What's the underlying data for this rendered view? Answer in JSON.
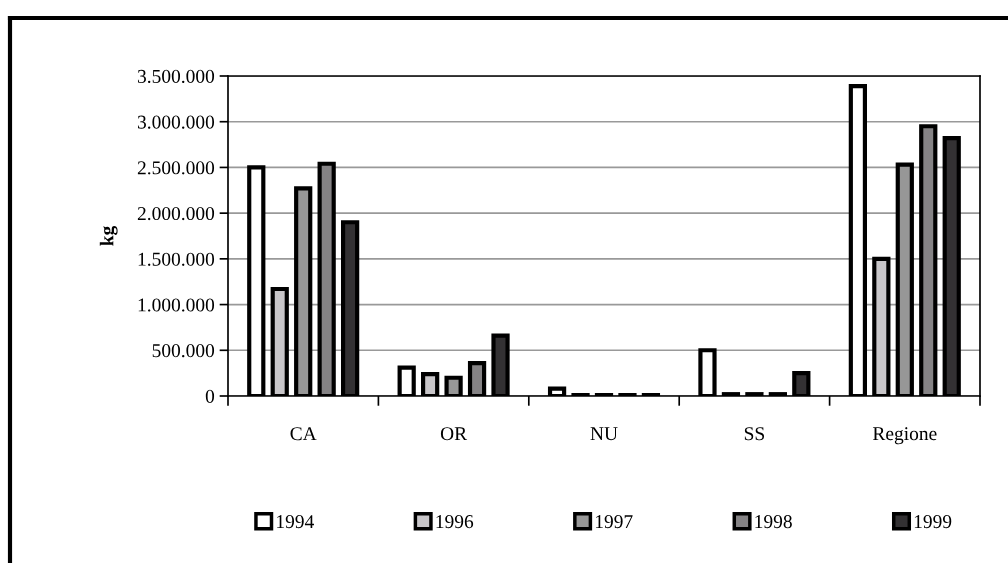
{
  "chart_data": {
    "type": "bar",
    "ylabel": "kg",
    "categories": [
      "CA",
      "OR",
      "NU",
      "SS",
      "Regione"
    ],
    "series": [
      {
        "name": "1994",
        "color": "#ffffff",
        "values": [
          2500000,
          310000,
          80000,
          500000,
          3390000
        ]
      },
      {
        "name": "1996",
        "color": "#c8c6c9",
        "values": [
          1170000,
          240000,
          10000,
          20000,
          1500000
        ]
      },
      {
        "name": "1997",
        "color": "#979797",
        "values": [
          2270000,
          200000,
          10000,
          20000,
          2530000
        ]
      },
      {
        "name": "1998",
        "color": "#858385",
        "values": [
          2540000,
          360000,
          10000,
          20000,
          2950000
        ]
      },
      {
        "name": "1999",
        "color": "#333133",
        "values": [
          1900000,
          660000,
          10000,
          250000,
          2820000
        ]
      }
    ],
    "ylim": [
      0,
      3500000
    ],
    "yticks": [
      {
        "value": 0,
        "label": "0"
      },
      {
        "value": 500000,
        "label": "500.000"
      },
      {
        "value": 1000000,
        "label": "1.000.000"
      },
      {
        "value": 1500000,
        "label": "1.500.000"
      },
      {
        "value": 2000000,
        "label": "2.000.000"
      },
      {
        "value": 2500000,
        "label": "2.500.000"
      },
      {
        "value": 3000000,
        "label": "3.000.000"
      },
      {
        "value": 3500000,
        "label": "3.500.000"
      }
    ],
    "grid": "y",
    "legend": "bottom"
  }
}
